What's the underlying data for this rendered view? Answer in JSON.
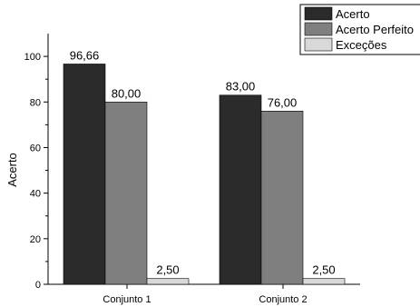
{
  "chart_data": {
    "type": "bar",
    "ylabel": "Acerto",
    "xlabel": "",
    "ylim": [
      0,
      110
    ],
    "yticks": [
      0,
      20,
      40,
      60,
      80,
      100
    ],
    "categories": [
      "Conjunto 1",
      "Conjunto 2"
    ],
    "series": [
      {
        "name": "Acerto",
        "values": [
          96.66,
          83.0
        ],
        "labels": [
          "96,66",
          "83,00"
        ],
        "color": "#2b2b2b"
      },
      {
        "name": "Acerto Perfeito",
        "values": [
          80.0,
          76.0
        ],
        "labels": [
          "80,00",
          "76,00"
        ],
        "color": "#7f7f7f"
      },
      {
        "name": "Exceções",
        "values": [
          2.5,
          2.5
        ],
        "labels": [
          "2,50",
          "2,50"
        ],
        "color": "#d9d9d9"
      }
    ],
    "legend": "top-right",
    "grid": false
  }
}
